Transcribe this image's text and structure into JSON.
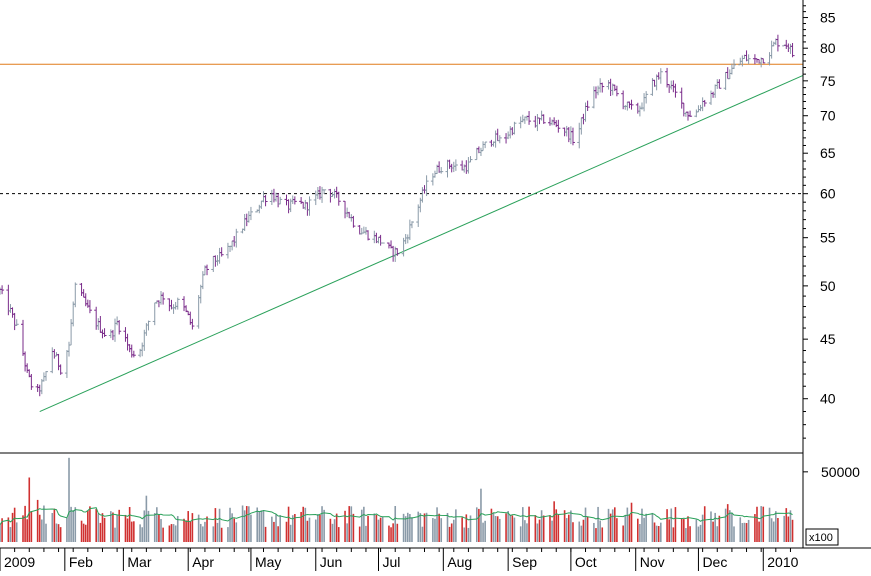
{
  "chart_data": [
    {
      "type": "ohlc",
      "panel": "price",
      "y_scale": "log",
      "ylim": [
        36,
        88
      ],
      "y_ticks": [
        40,
        45,
        50,
        55,
        60,
        65,
        70,
        75,
        80,
        85
      ],
      "x_range": [
        "2009-01-01",
        "2010-01-20"
      ],
      "x_tick_labels": [
        {
          "label": "2009",
          "date": "2009-01-01"
        },
        {
          "label": "Feb",
          "date": "2009-02-01"
        },
        {
          "label": "Mar",
          "date": "2009-03-01"
        },
        {
          "label": "Apr",
          "date": "2009-04-01"
        },
        {
          "label": "May",
          "date": "2009-05-01"
        },
        {
          "label": "Jun",
          "date": "2009-06-01"
        },
        {
          "label": "Jul",
          "date": "2009-07-01"
        },
        {
          "label": "Aug",
          "date": "2009-08-01"
        },
        {
          "label": "Sep",
          "date": "2009-09-01"
        },
        {
          "label": "Oct",
          "date": "2009-10-01"
        },
        {
          "label": "Nov",
          "date": "2009-11-01"
        },
        {
          "label": "Dec",
          "date": "2009-12-01"
        },
        {
          "label": "2010",
          "date": "2010-01-01"
        }
      ],
      "close_anchors": [
        [
          "2009-01-01",
          49.5
        ],
        [
          "2009-01-06",
          47.5
        ],
        [
          "2009-01-10",
          45.5
        ],
        [
          "2009-01-14",
          42
        ],
        [
          "2009-01-18",
          40.2
        ],
        [
          "2009-01-22",
          41.5
        ],
        [
          "2009-01-26",
          44
        ],
        [
          "2009-01-30",
          42.5
        ],
        [
          "2009-02-03",
          44.5
        ],
        [
          "2009-02-06",
          50
        ],
        [
          "2009-02-10",
          48.5
        ],
        [
          "2009-02-14",
          47
        ],
        [
          "2009-02-18",
          46
        ],
        [
          "2009-02-22",
          45
        ],
        [
          "2009-02-26",
          46.5
        ],
        [
          "2009-03-01",
          45.5
        ],
        [
          "2009-03-04",
          44
        ],
        [
          "2009-03-08",
          43.5
        ],
        [
          "2009-03-12",
          46
        ],
        [
          "2009-03-16",
          48.5
        ],
        [
          "2009-03-20",
          49
        ],
        [
          "2009-03-24",
          48
        ],
        [
          "2009-03-28",
          48.5
        ],
        [
          "2009-04-01",
          47
        ],
        [
          "2009-04-03",
          46
        ],
        [
          "2009-04-06",
          49
        ],
        [
          "2009-04-09",
          51.5
        ],
        [
          "2009-04-13",
          52.5
        ],
        [
          "2009-04-17",
          53
        ],
        [
          "2009-04-21",
          54
        ],
        [
          "2009-04-25",
          55.5
        ],
        [
          "2009-04-29",
          57
        ],
        [
          "2009-05-03",
          58
        ],
        [
          "2009-05-07",
          59.5
        ],
        [
          "2009-05-11",
          60
        ],
        [
          "2009-05-15",
          59
        ],
        [
          "2009-05-19",
          58.5
        ],
        [
          "2009-05-23",
          59
        ],
        [
          "2009-05-27",
          58.5
        ],
        [
          "2009-06-01",
          59.5
        ],
        [
          "2009-06-05",
          60.5
        ],
        [
          "2009-06-09",
          60
        ],
        [
          "2009-06-13",
          59
        ],
        [
          "2009-06-17",
          57.5
        ],
        [
          "2009-06-21",
          56
        ],
        [
          "2009-06-25",
          55.5
        ],
        [
          "2009-06-29",
          55
        ],
        [
          "2009-07-03",
          54.5
        ],
        [
          "2009-07-07",
          53.5
        ],
        [
          "2009-07-11",
          53.5
        ],
        [
          "2009-07-15",
          55.5
        ],
        [
          "2009-07-19",
          58
        ],
        [
          "2009-07-23",
          60.5
        ],
        [
          "2009-07-27",
          62.5
        ],
        [
          "2009-08-01",
          63.5
        ],
        [
          "2009-08-05",
          63.5
        ],
        [
          "2009-08-09",
          63
        ],
        [
          "2009-08-13",
          63.5
        ],
        [
          "2009-08-17",
          65
        ],
        [
          "2009-08-21",
          66
        ],
        [
          "2009-08-25",
          67
        ],
        [
          "2009-08-29",
          66.5
        ],
        [
          "2009-09-02",
          68
        ],
        [
          "2009-09-06",
          69
        ],
        [
          "2009-09-10",
          69.5
        ],
        [
          "2009-09-14",
          69
        ],
        [
          "2009-09-18",
          69.5
        ],
        [
          "2009-09-22",
          69
        ],
        [
          "2009-09-26",
          68.5
        ],
        [
          "2009-09-30",
          67.5
        ],
        [
          "2009-10-03",
          66.5
        ],
        [
          "2009-10-07",
          70
        ],
        [
          "2009-10-11",
          73
        ],
        [
          "2009-10-15",
          74
        ],
        [
          "2009-10-19",
          74.5
        ],
        [
          "2009-10-23",
          73
        ],
        [
          "2009-10-27",
          71.5
        ],
        [
          "2009-11-01",
          70.5
        ],
        [
          "2009-11-05",
          72
        ],
        [
          "2009-11-09",
          74.5
        ],
        [
          "2009-11-13",
          76
        ],
        [
          "2009-11-17",
          74.5
        ],
        [
          "2009-11-21",
          72.5
        ],
        [
          "2009-11-25",
          70.5
        ],
        [
          "2009-11-29",
          70
        ],
        [
          "2009-12-03",
          72
        ],
        [
          "2009-12-07",
          73
        ],
        [
          "2009-12-11",
          74.5
        ],
        [
          "2009-12-15",
          76
        ],
        [
          "2009-12-19",
          77.5
        ],
        [
          "2009-12-23",
          78.5
        ],
        [
          "2009-12-27",
          78
        ],
        [
          "2010-01-01",
          78.5
        ],
        [
          "2010-01-04",
          79.5
        ],
        [
          "2010-01-07",
          81
        ],
        [
          "2010-01-10",
          81
        ],
        [
          "2010-01-13",
          80.5
        ],
        [
          "2010-01-15",
          79
        ],
        [
          "2010-01-17",
          77.5
        ]
      ],
      "horizontal_lines": [
        {
          "value": 77.5,
          "color": "#e07b1a",
          "style": "solid"
        },
        {
          "value": 60,
          "color": "#000000",
          "style": "dotted"
        }
      ],
      "trendline": {
        "start": [
          "2009-01-20",
          39
        ],
        "end": [
          "2010-01-20",
          75.8
        ],
        "color": "#2aa15a"
      },
      "bar_colors": {
        "up": "#8a9aa8",
        "down": "#7a2b8a"
      }
    },
    {
      "type": "bar",
      "panel": "volume",
      "y_ticks": [
        50000
      ],
      "unit_label": "x100",
      "ylim": [
        0,
        62000
      ],
      "typical_volume": 18000,
      "spikes": [
        [
          "2009-01-15",
          46000
        ],
        [
          "2009-01-19",
          30000
        ],
        [
          "2009-01-22",
          26000
        ],
        [
          "2009-02-03",
          60000
        ],
        [
          "2009-03-12",
          33000
        ],
        [
          "2009-04-18",
          48000
        ],
        [
          "2009-08-19",
          38000
        ],
        [
          "2009-09-23",
          29000
        ],
        [
          "2009-10-30",
          28000
        ],
        [
          "2009-12-15",
          27000
        ]
      ],
      "moving_average_color": "#2aa15a",
      "bar_colors": {
        "up": "#8a9aa8",
        "down": "#d03030"
      }
    }
  ]
}
